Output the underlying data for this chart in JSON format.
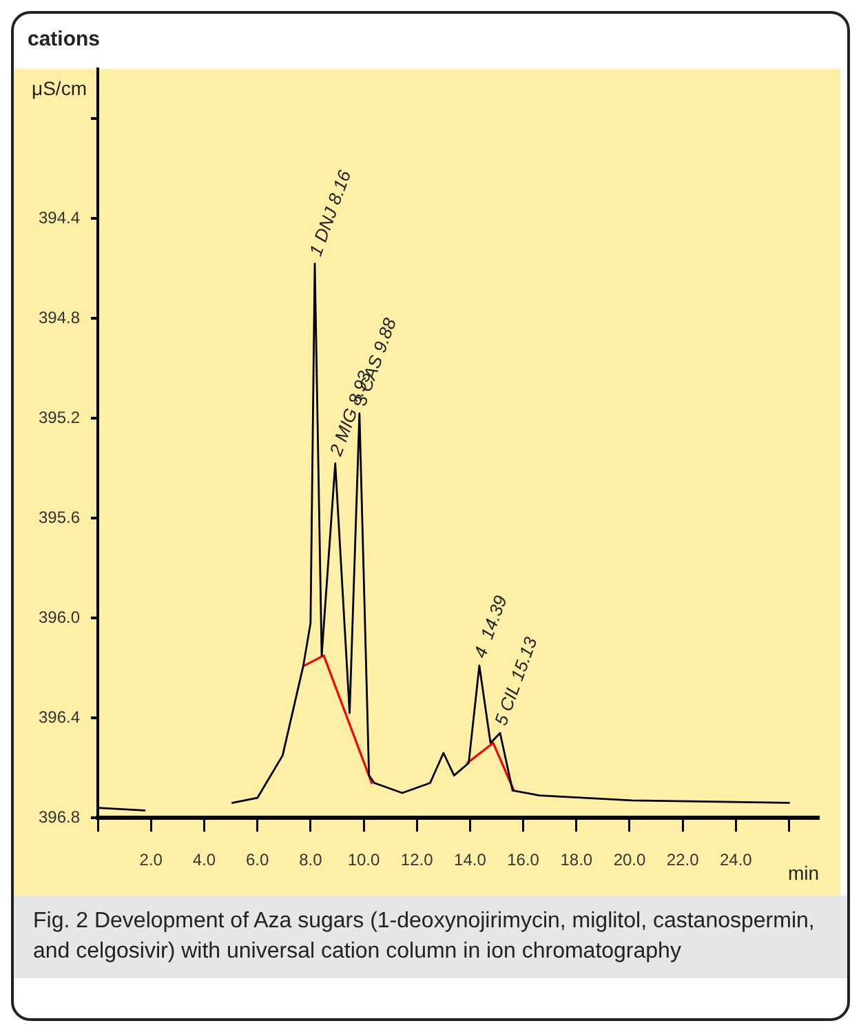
{
  "chart_data": {
    "type": "line",
    "title": "cations",
    "ylabel": "μS/cm",
    "xlabel": "min",
    "xlim": [
      0,
      27.1
    ],
    "ylim": [
      396.8,
      393.8
    ],
    "xticks": [
      {
        "value": 0,
        "label": null
      },
      {
        "value": 2,
        "label": "2.0"
      },
      {
        "value": 4,
        "label": "4.0"
      },
      {
        "value": 6,
        "label": "6.0"
      },
      {
        "value": 8,
        "label": "8.0"
      },
      {
        "value": 10,
        "label": "10.0"
      },
      {
        "value": 12,
        "label": "12.0"
      },
      {
        "value": 14,
        "label": "14.0"
      },
      {
        "value": 16,
        "label": "16.0"
      },
      {
        "value": 18,
        "label": "18.0"
      },
      {
        "value": 20,
        "label": "20.0"
      },
      {
        "value": 22,
        "label": "22.0"
      },
      {
        "value": 24,
        "label": "24.0"
      },
      {
        "value": 26,
        "label": null
      }
    ],
    "yticks": [
      {
        "value": 394.0,
        "label": null
      },
      394.4,
      394.8,
      395.2,
      395.6,
      {
        "value": 396.0,
        "label": "396.0"
      },
      396.4,
      396.8
    ],
    "grid": false,
    "legend": false,
    "marker": "none",
    "line_style": "solid",
    "series": [
      {
        "color": "#000000",
        "x": [
          0,
          1.76,
          2.0,
          2.8,
          3.06,
          3.77,
          3.85,
          4.67,
          5.06,
          6.0,
          6.95,
          7.73,
          8.0,
          8.16,
          8.42,
          8.93,
          9.47,
          9.84,
          10.2,
          10.4,
          11.45,
          12.5,
          13.0,
          13.4,
          13.95,
          14.35,
          14.77,
          15.13,
          15.6,
          16.6,
          20.1,
          26.0
        ],
        "values": [
          396.76,
          396.77,
          null,
          null,
          null,
          null,
          null,
          null,
          396.74,
          396.72,
          396.55,
          396.19,
          396.02,
          394.58,
          396.15,
          395.38,
          396.38,
          395.18,
          396.63,
          396.66,
          396.7,
          396.66,
          396.54,
          396.63,
          396.58,
          396.19,
          396.5,
          396.46,
          396.69,
          396.71,
          396.73,
          396.74
        ]
      },
      {
        "color": "#ff0000",
        "x": [
          7.77,
          8.5,
          10.3,
          12.0,
          13.9,
          14.87,
          15.65
        ],
        "values": [
          396.19,
          396.15,
          396.66,
          null,
          396.58,
          396.5,
          396.69
        ]
      }
    ],
    "annotations": [
      {
        "text": "1 DNJ 8.16",
        "x": 8.16,
        "y": 394.58
      },
      {
        "text": "2 MIG 8.93",
        "x": 8.93,
        "y": 395.38
      },
      {
        "text": "3 CAS 9.88",
        "x": 9.84,
        "y": 395.18
      },
      {
        "text": "4  14.39",
        "x": 14.35,
        "y": 396.19
      },
      {
        "text": "5 CIL 15.13",
        "x": 15.13,
        "y": 396.46
      },
      "Fig. 2 Development of Aza sugars (1-deoxynojirimycin, miglitol, castanospermin, and celgosivir) with universal cation column in ion chromatography"
    ]
  }
}
